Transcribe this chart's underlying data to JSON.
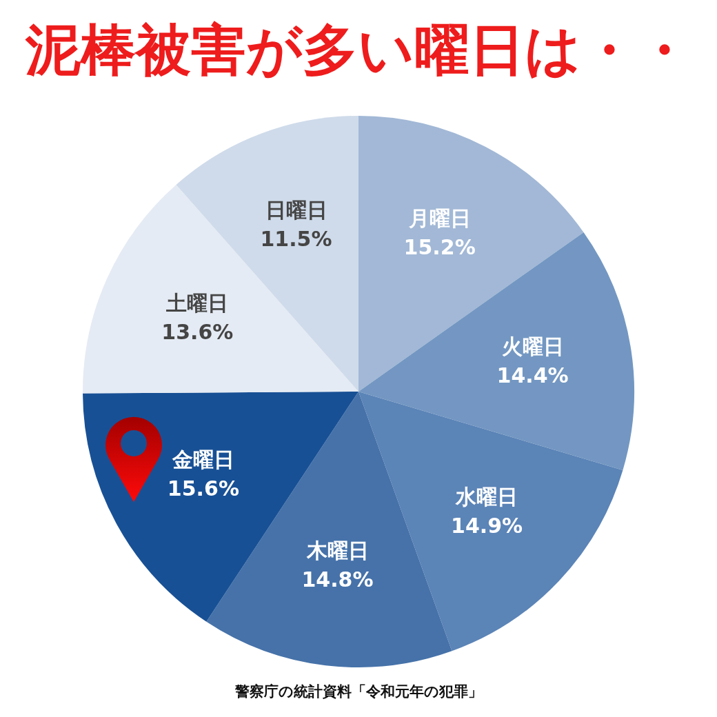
{
  "chart_data": {
    "type": "pie",
    "title": "泥棒被害が多い曜日は・・",
    "categories": [
      "月曜日",
      "火曜日",
      "水曜日",
      "木曜日",
      "金曜日",
      "土曜日",
      "日曜日"
    ],
    "values": [
      15.2,
      14.4,
      14.9,
      14.8,
      15.6,
      13.6,
      11.5
    ],
    "colors": [
      "#a2b8d6",
      "#7397c2",
      "#5b84b7",
      "#4672a9",
      "#185095",
      "#e5ebf4",
      "#cfdbea"
    ],
    "value_labels": [
      "15.2%",
      "14.4%",
      "14.9%",
      "14.8%",
      "15.6%",
      "13.6%",
      "11.5%"
    ],
    "annotations": [
      "警察庁の統計資料「令和元年の犯罪」"
    ]
  }
}
